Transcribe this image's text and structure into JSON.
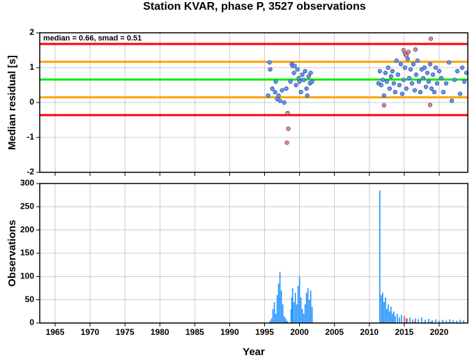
{
  "chart_data": [
    {
      "type": "scatter",
      "title": "Station KVAR, phase P, 3527 observations",
      "ylabel": "Median residual [s]",
      "annotation": "median = 0.66, smad = 0.51",
      "xlim": [
        1962.8,
        2024.1
      ],
      "xticks": [
        1965,
        1970,
        1975,
        1980,
        1985,
        1990,
        1995,
        2000,
        2005,
        2010,
        2015,
        2020
      ],
      "ylim": [
        -2,
        2
      ],
      "yticks": [
        -2,
        -1,
        0,
        1,
        2
      ],
      "grid": true,
      "hlines": [
        {
          "value": 1.68,
          "color": "#ff0000"
        },
        {
          "value": 1.17,
          "color": "#ffa500"
        },
        {
          "value": 0.66,
          "color": "#00ee00"
        },
        {
          "value": 0.15,
          "color": "#ffa500"
        },
        {
          "value": -0.36,
          "color": "#ff0000"
        }
      ],
      "series": [
        {
          "color": "#6495ed",
          "x": [
            1995.5,
            1995.7,
            1995.8,
            1996.1,
            1996.5,
            1996.6,
            1996.8,
            1997.0,
            1997.2,
            1997.5,
            1997.8,
            1998.1,
            1998.7,
            1998.9,
            1999.0,
            1999.2,
            1999.3,
            1999.5,
            1999.7,
            1999.9,
            2000.0,
            2000.2,
            2000.4,
            2000.6,
            2000.8,
            2001.0,
            2001.1,
            2001.3,
            2001.5,
            2001.6,
            2001.8,
            2011.3,
            2011.5,
            2011.7,
            2011.9,
            2012.1,
            2012.3,
            2012.5,
            2012.7,
            2012.9,
            2013.1,
            2013.3,
            2013.5,
            2013.7,
            2013.9,
            2014.1,
            2014.3,
            2014.5,
            2014.7,
            2014.9,
            2015.1,
            2015.3,
            2015.5,
            2015.7,
            2015.9,
            2016.1,
            2016.3,
            2016.5,
            2016.7,
            2016.9,
            2017.1,
            2017.3,
            2017.5,
            2017.7,
            2017.9,
            2018.1,
            2018.3,
            2018.5,
            2018.7,
            2018.9,
            2019.1,
            2019.3,
            2019.5,
            2019.7,
            2020.0,
            2020.3,
            2020.6,
            2021.0,
            2021.4,
            2021.8,
            2022.2,
            2022.6,
            2023.0,
            2023.3,
            2023.6,
            2023.9
          ],
          "values": [
            0.2,
            1.15,
            0.95,
            0.4,
            0.3,
            0.6,
            0.1,
            0.2,
            0.05,
            0.35,
            0.0,
            0.4,
            0.6,
            1.1,
            1.05,
            0.85,
            1.05,
            0.5,
            0.95,
            0.7,
            0.6,
            0.3,
            0.8,
            0.65,
            0.9,
            0.4,
            0.2,
            0.75,
            0.55,
            0.85,
            0.6,
            0.55,
            0.9,
            0.5,
            0.65,
            0.2,
            0.85,
            0.6,
            1.0,
            0.4,
            0.75,
            0.9,
            0.55,
            0.3,
            1.2,
            0.8,
            0.5,
            1.1,
            0.25,
            0.65,
            1.0,
            0.4,
            1.25,
            0.7,
            0.95,
            0.55,
            1.1,
            0.35,
            0.8,
            1.2,
            0.6,
            0.3,
            0.95,
            0.7,
            1.0,
            0.45,
            0.85,
            0.6,
            1.1,
            0.4,
            0.8,
            0.3,
            1.0,
            0.55,
            0.9,
            0.7,
            0.3,
            0.55,
            1.15,
            0.05,
            0.65,
            0.9,
            0.25,
            1.0,
            0.6,
            0.85
          ]
        },
        {
          "color": "#f08080",
          "x": [
            1998.3,
            1998.4,
            1998.2,
            2012.1,
            2014.9,
            2015.1,
            2015.3,
            2015.6,
            2016.6,
            2018.8,
            2018.7
          ],
          "values": [
            -0.3,
            -0.75,
            -1.15,
            -0.08,
            1.5,
            1.4,
            1.35,
            1.45,
            1.52,
            1.83,
            -0.07
          ]
        }
      ]
    },
    {
      "type": "bar",
      "ylabel": "Observations",
      "xlabel": "Year",
      "xlim": [
        1962.8,
        2024.1
      ],
      "xticks": [
        1965,
        1970,
        1975,
        1980,
        1985,
        1990,
        1995,
        2000,
        2005,
        2010,
        2015,
        2020
      ],
      "ylim": [
        0,
        300
      ],
      "yticks": [
        0,
        50,
        100,
        150,
        200,
        250,
        300
      ],
      "grid": true,
      "series": [
        {
          "color": "#1e90ff",
          "x": [
            1995.8,
            1996.0,
            1996.2,
            1996.4,
            1996.6,
            1996.8,
            1997.0,
            1997.2,
            1997.4,
            1997.6,
            1997.8,
            1998.0,
            1998.2,
            1998.8,
            1998.9,
            1999.0,
            1999.2,
            1999.4,
            1999.6,
            1999.8,
            2000.0,
            2000.2,
            2000.4,
            2000.6,
            2000.8,
            2001.0,
            2001.2,
            2001.4,
            2001.6,
            2001.8,
            2011.5,
            2011.7,
            2011.9,
            2012.1,
            2012.3,
            2012.5,
            2012.7,
            2012.9,
            2013.1,
            2013.3,
            2013.5,
            2013.7,
            2014.0,
            2014.3,
            2014.6,
            2015.0,
            2015.4,
            2015.8,
            2016.2,
            2016.6,
            2017.0,
            2017.5,
            2018.0,
            2018.5,
            2019.0,
            2019.5,
            2020.0,
            2020.5,
            2021.0,
            2021.5,
            2022.0,
            2022.5,
            2023.0,
            2023.5
          ],
          "values": [
            5,
            10,
            30,
            45,
            20,
            60,
            85,
            110,
            70,
            40,
            15,
            10,
            5,
            30,
            55,
            75,
            45,
            65,
            40,
            80,
            100,
            55,
            30,
            20,
            40,
            65,
            75,
            50,
            70,
            35,
            285,
            60,
            65,
            45,
            55,
            30,
            40,
            25,
            35,
            20,
            25,
            15,
            20,
            12,
            18,
            15,
            10,
            12,
            8,
            10,
            8,
            12,
            7,
            9,
            6,
            8,
            5,
            7,
            5,
            8,
            6,
            5,
            7,
            6
          ]
        },
        {
          "color": "#ff4040",
          "x": [
            1998.3,
            2012.0,
            2015.0,
            2015.3,
            2016.5,
            2018.8
          ],
          "values": [
            3,
            3,
            15,
            10,
            4,
            3
          ]
        }
      ]
    }
  ]
}
